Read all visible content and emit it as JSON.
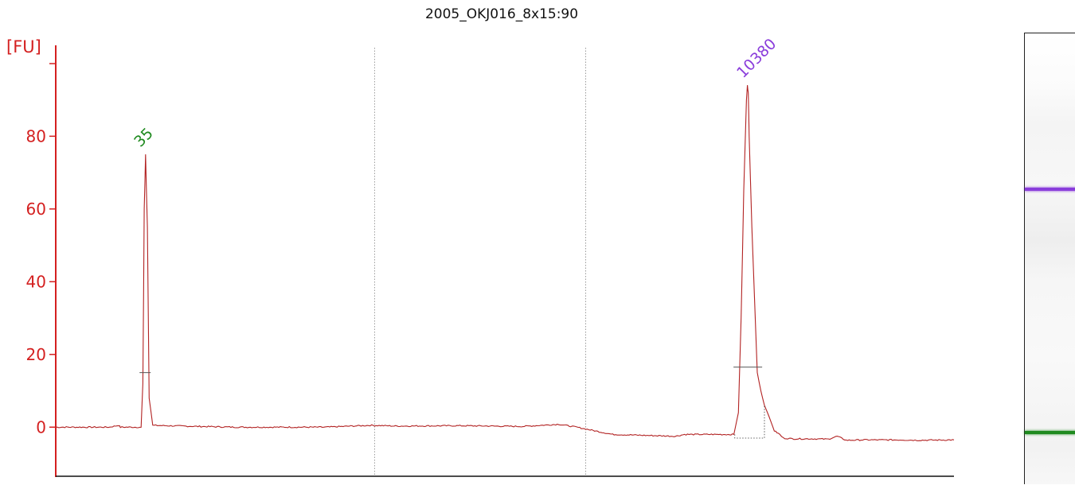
{
  "title": "2005_OKJ016_8x15:90",
  "colors": {
    "axis": "#d42020",
    "trace": "#b22222",
    "peak_small_label": "#1f8a1f",
    "peak_large_label": "#8a3ddb",
    "gridline": "#9a9a9a"
  },
  "chart_data": {
    "type": "line",
    "title": "2005_OKJ016_8x15:90",
    "ylabel": "[FU]",
    "xlabel": "",
    "yticks": [
      0,
      20,
      40,
      60,
      80
    ],
    "ylim": [
      -13.5,
      105
    ],
    "xlim": [
      0,
      100
    ],
    "series": [
      {
        "x": [
          0,
          6,
          7,
          7.2,
          9.5,
          9.7,
          9.85,
          10.0,
          10.2,
          10.4,
          10.8,
          14,
          20,
          30,
          35,
          38,
          45,
          52,
          56,
          58,
          59,
          62,
          69,
          70,
          75.5,
          76.0,
          76.3,
          76.6,
          76.9,
          77.0,
          77.1,
          77.2,
          77.5,
          77.8,
          78.1,
          78.5,
          78.9,
          79.4,
          80.0,
          80.6,
          81,
          82,
          84,
          86,
          87,
          88,
          90,
          92,
          94,
          96,
          100
        ],
        "y": [
          0,
          0,
          0.5,
          0,
          0,
          12,
          60,
          75,
          55,
          8,
          0.5,
          0.3,
          0,
          0,
          0.5,
          0.3,
          0.4,
          0.2,
          0.8,
          0,
          -0.5,
          -2,
          -2.5,
          -2,
          -2,
          4,
          30,
          65,
          90,
          94,
          92,
          80,
          55,
          35,
          15,
          10,
          6,
          3,
          -1,
          -2,
          -3,
          -3.2,
          -3.2,
          -3.3,
          -2.5,
          -3.6,
          -3.5,
          -3.5,
          -3.5,
          -3.6,
          -3.5
        ]
      }
    ],
    "peaks": [
      {
        "label": "35",
        "x": 9.95,
        "y": 75.5,
        "baseline_y": 15
      },
      {
        "label": "10380",
        "x": 77.05,
        "y": 94.5,
        "baseline_y": 16.5
      }
    ],
    "dashed_gridlines_x": [
      35.5,
      59
    ],
    "legend": "none",
    "gel_bands": [
      {
        "position": 0.345,
        "color": "#8a3ddb"
      },
      {
        "position": 0.884,
        "color": "#1f8a1f"
      }
    ]
  }
}
